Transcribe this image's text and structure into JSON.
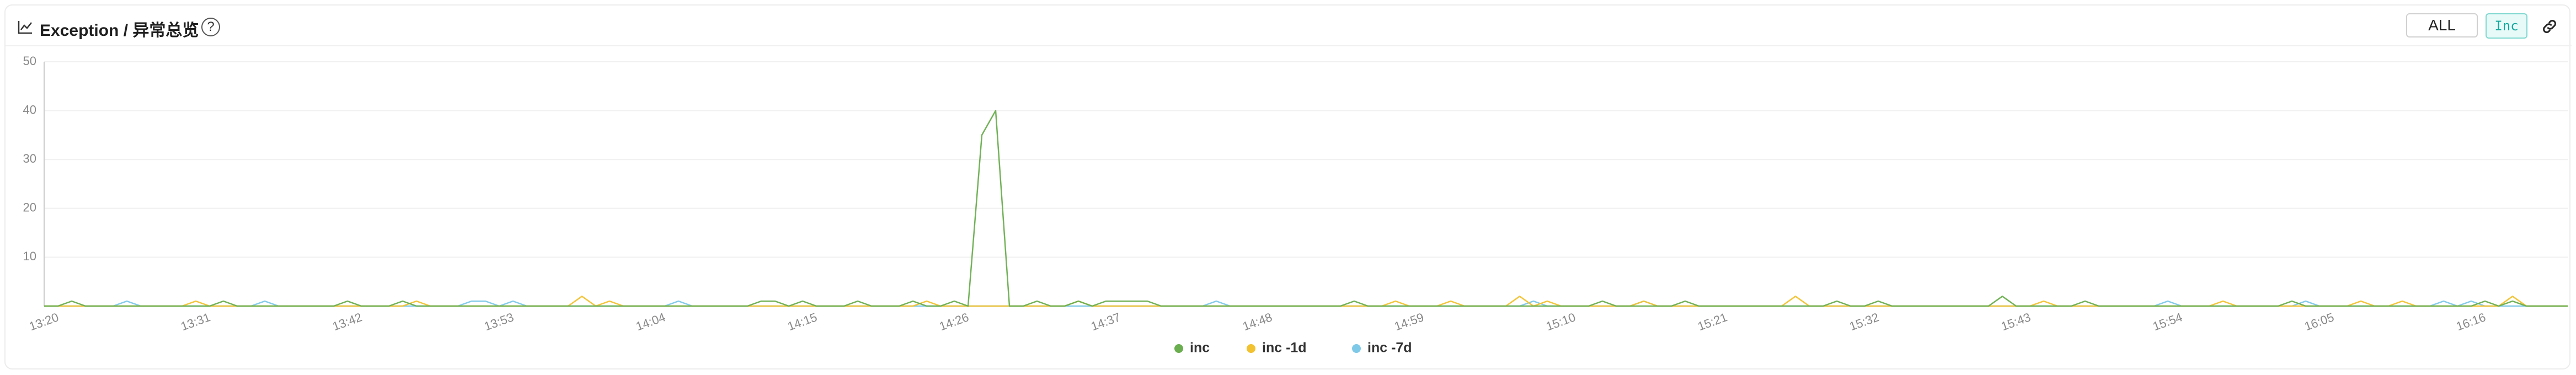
{
  "header": {
    "title": "Exception / 异常总览",
    "help": "?",
    "buttons": [
      "ALL",
      "Inc"
    ]
  },
  "chart_data": {
    "type": "line",
    "categories": [
      "13:20",
      null,
      null,
      null,
      null,
      null,
      null,
      null,
      null,
      null,
      null,
      "13:31",
      null,
      null,
      null,
      null,
      null,
      null,
      null,
      null,
      null,
      null,
      "13:42",
      null,
      null,
      null,
      null,
      null,
      null,
      null,
      null,
      null,
      null,
      "13:53",
      null,
      null,
      null,
      null,
      null,
      null,
      null,
      null,
      null,
      null,
      "14:04",
      null,
      null,
      null,
      null,
      null,
      null,
      null,
      null,
      null,
      null,
      "14:15",
      null,
      null,
      null,
      null,
      null,
      null,
      null,
      null,
      null,
      null,
      "14:26",
      null,
      null,
      null,
      null,
      null,
      null,
      null,
      null,
      null,
      null,
      "14:37",
      null,
      null,
      null,
      null,
      null,
      null,
      null,
      null,
      null,
      null,
      "14:48",
      null,
      null,
      null,
      null,
      null,
      null,
      null,
      null,
      null,
      null,
      "14:59",
      null,
      null,
      null,
      null,
      null,
      null,
      null,
      null,
      null,
      null,
      "15:10",
      null,
      null,
      null,
      null,
      null,
      null,
      null,
      null,
      null,
      null,
      "15:21",
      null,
      null,
      null,
      null,
      null,
      null,
      null,
      null,
      null,
      null,
      "15:32",
      null,
      null,
      null,
      null,
      null,
      null,
      null,
      null,
      null,
      null,
      "15:43",
      null,
      null,
      null,
      null,
      null,
      null,
      null,
      null,
      null,
      null,
      "15:54",
      null,
      null,
      null,
      null,
      null,
      null,
      null,
      null,
      null,
      null,
      "16:05",
      null,
      null,
      null,
      null,
      null,
      null,
      null,
      null,
      null,
      null,
      "16:16",
      null,
      null,
      null,
      null,
      null,
      null,
      null
    ],
    "series": [
      {
        "name": "inc",
        "color": "#6aae4f",
        "values": [
          0,
          0,
          1,
          0,
          0,
          0,
          0,
          0,
          0,
          0,
          0,
          0,
          0,
          1,
          0,
          0,
          0,
          0,
          0,
          0,
          0,
          0,
          1,
          0,
          0,
          0,
          1,
          0,
          0,
          0,
          0,
          0,
          0,
          0,
          0,
          0,
          0,
          0,
          0,
          0,
          0,
          0,
          0,
          0,
          0,
          0,
          0,
          0,
          0,
          0,
          0,
          0,
          1,
          1,
          0,
          1,
          0,
          0,
          0,
          1,
          0,
          0,
          0,
          1,
          0,
          0,
          1,
          0,
          35,
          40,
          0,
          0,
          1,
          0,
          0,
          1,
          0,
          1,
          1,
          1,
          1,
          0,
          0,
          0,
          0,
          0,
          0,
          0,
          0,
          0,
          0,
          0,
          0,
          0,
          0,
          1,
          0,
          0,
          0,
          0,
          0,
          0,
          0,
          0,
          0,
          0,
          0,
          0,
          0,
          0,
          0,
          0,
          0,
          1,
          0,
          0,
          0,
          0,
          0,
          1,
          0,
          0,
          0,
          0,
          0,
          0,
          0,
          0,
          0,
          0,
          1,
          0,
          0,
          1,
          0,
          0,
          0,
          0,
          0,
          0,
          0,
          0,
          2,
          0,
          0,
          0,
          0,
          0,
          1,
          0,
          0,
          0,
          0,
          0,
          0,
          0,
          0,
          0,
          0,
          0,
          0,
          0,
          0,
          1,
          0,
          0,
          0,
          0,
          0,
          0,
          0,
          0,
          0,
          0,
          0,
          0,
          0,
          1,
          0,
          1,
          0,
          0,
          0,
          0
        ]
      },
      {
        "name": "inc -1d",
        "color": "#f2c230",
        "values": [
          0,
          0,
          0,
          0,
          0,
          0,
          0,
          0,
          0,
          0,
          0,
          1,
          0,
          0,
          0,
          0,
          0,
          0,
          0,
          0,
          0,
          0,
          0,
          0,
          0,
          0,
          0,
          1,
          0,
          0,
          0,
          0,
          0,
          0,
          0,
          0,
          0,
          0,
          0,
          2,
          0,
          1,
          0,
          0,
          0,
          0,
          0,
          0,
          0,
          0,
          0,
          0,
          0,
          0,
          0,
          0,
          0,
          0,
          0,
          0,
          0,
          0,
          0,
          0,
          1,
          0,
          0,
          0,
          0,
          0,
          0,
          0,
          0,
          0,
          0,
          1,
          0,
          0,
          0,
          0,
          0,
          0,
          0,
          0,
          0,
          0,
          0,
          0,
          0,
          0,
          0,
          0,
          0,
          0,
          0,
          0,
          0,
          0,
          1,
          0,
          0,
          0,
          1,
          0,
          0,
          0,
          0,
          2,
          0,
          1,
          0,
          0,
          0,
          0,
          0,
          0,
          1,
          0,
          0,
          0,
          0,
          0,
          0,
          0,
          0,
          0,
          0,
          2,
          0,
          0,
          0,
          0,
          0,
          0,
          0,
          0,
          0,
          0,
          0,
          0,
          0,
          0,
          0,
          0,
          0,
          1,
          0,
          0,
          0,
          0,
          0,
          0,
          0,
          0,
          0,
          0,
          0,
          0,
          1,
          0,
          0,
          0,
          0,
          0,
          0,
          0,
          0,
          0,
          1,
          0,
          0,
          1,
          0,
          0,
          0,
          0,
          0,
          0,
          0,
          2,
          0,
          0,
          0,
          0
        ]
      },
      {
        "name": "inc -7d",
        "color": "#7ec8e8",
        "values": [
          0,
          0,
          0,
          0,
          0,
          0,
          1,
          0,
          0,
          0,
          0,
          0,
          0,
          0,
          0,
          0,
          1,
          0,
          0,
          0,
          0,
          0,
          0,
          0,
          0,
          0,
          0,
          0,
          0,
          0,
          0,
          1,
          1,
          0,
          1,
          0,
          0,
          0,
          0,
          0,
          0,
          0,
          0,
          0,
          0,
          0,
          1,
          0,
          0,
          0,
          0,
          0,
          0,
          0,
          0,
          0,
          0,
          0,
          0,
          0,
          0,
          0,
          0,
          0,
          0,
          0,
          0,
          0,
          0,
          0,
          0,
          0,
          0,
          0,
          0,
          0,
          0,
          0,
          0,
          0,
          0,
          0,
          0,
          0,
          0,
          1,
          0,
          0,
          0,
          0,
          0,
          0,
          0,
          0,
          0,
          0,
          0,
          0,
          0,
          0,
          0,
          0,
          0,
          0,
          0,
          0,
          0,
          0,
          1,
          0,
          0,
          0,
          0,
          0,
          0,
          0,
          1,
          0,
          0,
          0,
          0,
          0,
          0,
          0,
          0,
          0,
          0,
          0,
          0,
          0,
          0,
          0,
          0,
          0,
          0,
          0,
          0,
          0,
          0,
          0,
          0,
          0,
          0,
          0,
          0,
          0,
          0,
          0,
          0,
          0,
          0,
          0,
          0,
          0,
          1,
          0,
          0,
          0,
          0,
          0,
          0,
          0,
          0,
          0,
          1,
          0,
          0,
          0,
          0,
          0,
          0,
          0,
          0,
          0,
          1,
          0,
          1,
          0,
          0,
          0,
          0,
          0,
          0,
          0
        ]
      }
    ],
    "ylim": [
      0,
      50
    ],
    "yticks": [
      10,
      20,
      30,
      40,
      50
    ],
    "grid": true,
    "legend": "bottom"
  }
}
